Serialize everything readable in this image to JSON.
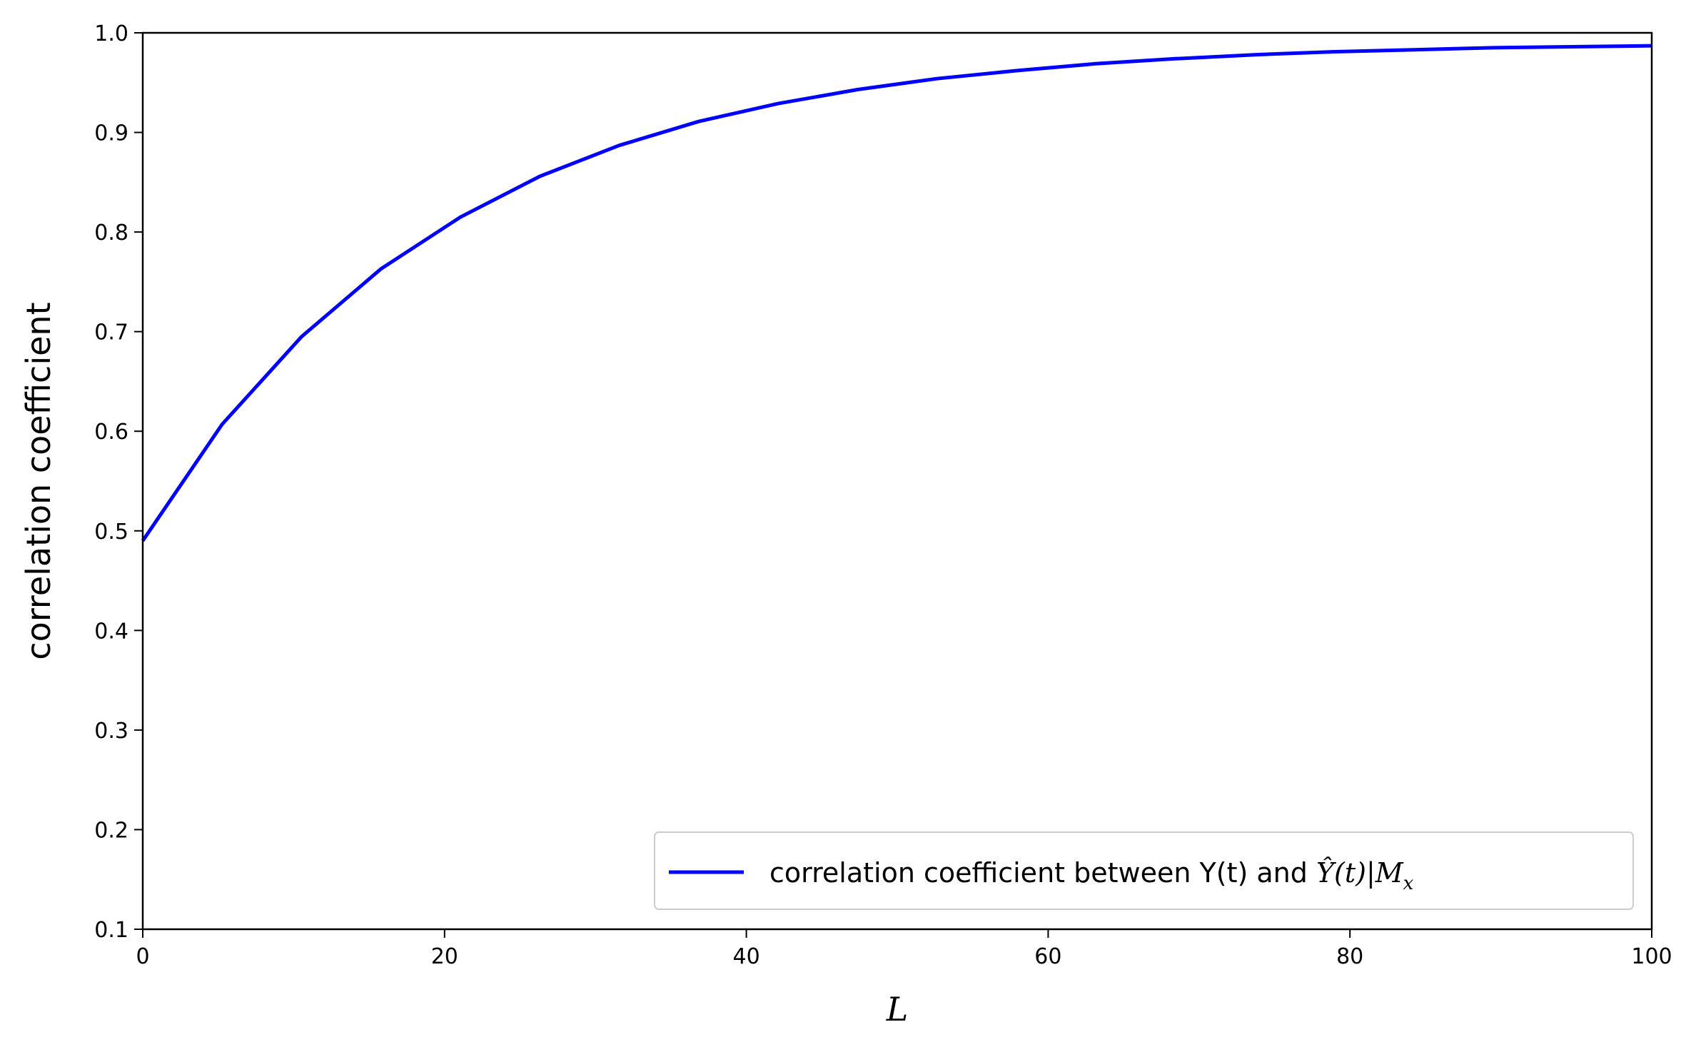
{
  "chart_data": {
    "type": "line",
    "title": "",
    "xlabel": "L",
    "ylabel": "correlation coefficient",
    "xlim": [
      0,
      100
    ],
    "ylim": [
      0.1,
      1.0
    ],
    "xticks": [
      0,
      20,
      40,
      60,
      80,
      100
    ],
    "xtick_labels": [
      "0",
      "20",
      "40",
      "60",
      "80",
      "100"
    ],
    "yticks": [
      0.1,
      0.2,
      0.3,
      0.4,
      0.5,
      0.6,
      0.7,
      0.8,
      0.9,
      1.0
    ],
    "ytick_labels": [
      "0.1",
      "0.2",
      "0.3",
      "0.4",
      "0.5",
      "0.6",
      "0.7",
      "0.8",
      "0.9",
      "1.0"
    ],
    "grid": false,
    "legend_position": "lower-right",
    "series": [
      {
        "name": "correlation coefficient between Y(t) and Ŷ(t)|Mx",
        "color": "#0000ff",
        "x": [
          0,
          5.26,
          10.53,
          15.79,
          21.05,
          26.32,
          31.58,
          36.84,
          42.11,
          47.37,
          52.63,
          57.89,
          63.16,
          68.42,
          73.68,
          78.95,
          84.21,
          89.47,
          94.74,
          100
        ],
        "y": [
          0.49,
          0.607,
          0.695,
          0.763,
          0.815,
          0.856,
          0.887,
          0.911,
          0.929,
          0.943,
          0.954,
          0.962,
          0.969,
          0.974,
          0.978,
          0.981,
          0.983,
          0.985,
          0.986,
          0.987
        ]
      }
    ]
  },
  "legend": {
    "prefix": "correlation coefficient between Y(t) and ",
    "math_main": "Ŷ(t)|M",
    "math_sub": "x"
  }
}
